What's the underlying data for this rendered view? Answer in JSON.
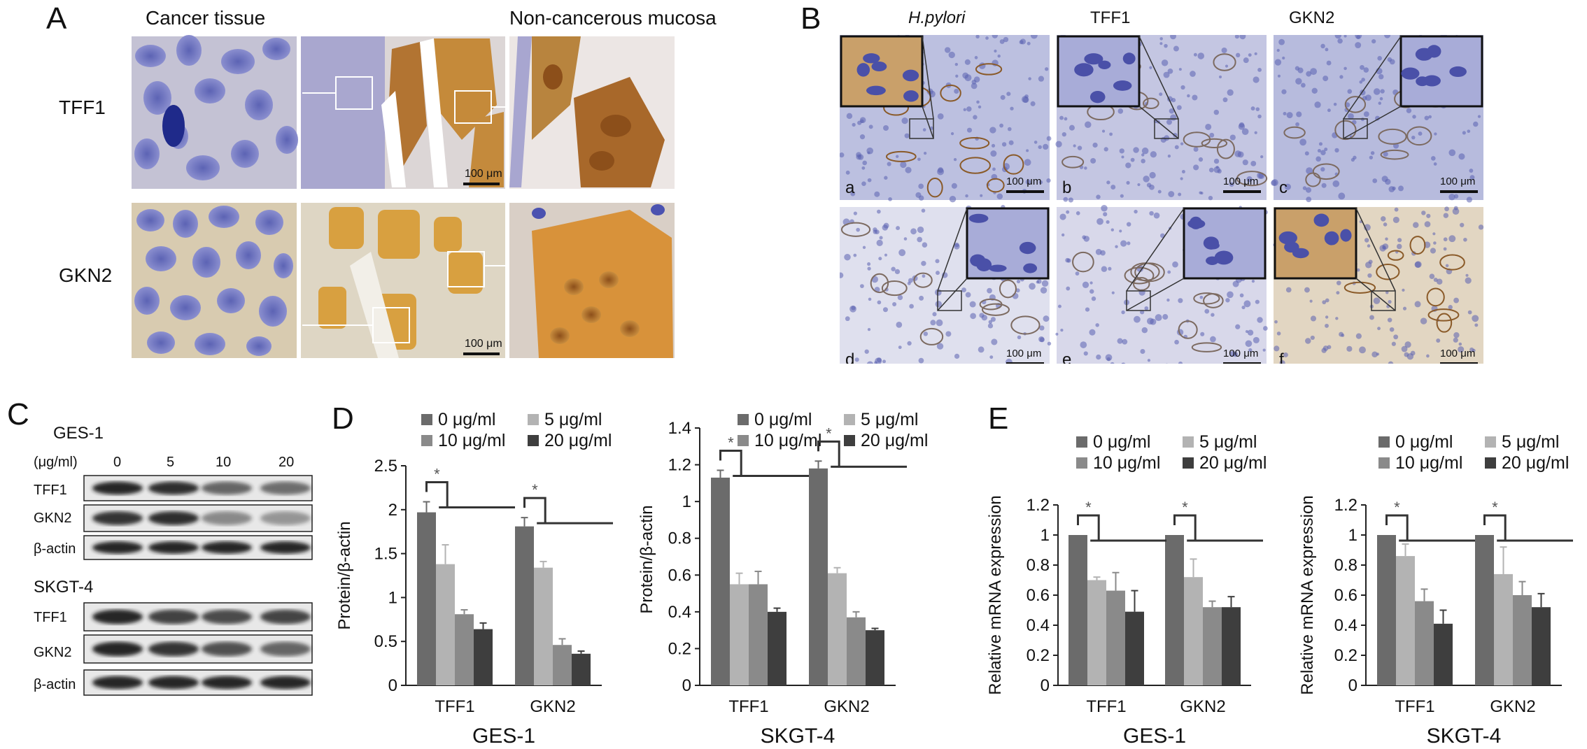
{
  "panelA": {
    "letter": "A",
    "col_cancer": "Cancer tissue",
    "col_noncancer": "Non-cancerous mucosa",
    "rows": [
      "TFF1",
      "GKN2"
    ],
    "scale": "100 μm"
  },
  "panelB": {
    "letter": "B",
    "cols": [
      "H.pylori",
      "TFF1",
      "GKN2"
    ],
    "sub": [
      "a",
      "b",
      "c",
      "d",
      "e",
      "f"
    ],
    "scale": "100 μm"
  },
  "panelC": {
    "letter": "C",
    "cell1": "GES-1",
    "cell2": "SKGT-4",
    "dose_label": "(μg/ml)",
    "doses": [
      "0",
      "5",
      "10",
      "20"
    ],
    "bands": [
      "TFF1",
      "GKN2",
      "β-actin"
    ]
  },
  "panelD": {
    "letter": "D"
  },
  "panelE": {
    "letter": "E"
  },
  "colors": {
    "s0": "#6b6b6b",
    "s5": "#b3b3b3",
    "s10": "#8a8a8a",
    "s20": "#3e3e3e",
    "he_blue": "#8a8fc9",
    "dab_brown": "#b87a2c"
  },
  "chart_data": [
    {
      "id": "D-GES1",
      "type": "bar",
      "categories": [
        "TFF1",
        "GKN2"
      ],
      "series": [
        {
          "name": "0 μg/ml",
          "values": [
            1.97,
            1.81
          ],
          "err": [
            0.12,
            0.1
          ]
        },
        {
          "name": "5 μg/ml",
          "values": [
            1.38,
            1.34
          ],
          "err": [
            0.22,
            0.07
          ]
        },
        {
          "name": "10 μg/ml",
          "values": [
            0.81,
            0.46
          ],
          "err": [
            0.05,
            0.07
          ]
        },
        {
          "name": "20 μg/ml",
          "values": [
            0.64,
            0.36
          ],
          "err": [
            0.07,
            0.03
          ]
        }
      ],
      "xlabel": "GES-1",
      "ylabel": "Protein/β-actin",
      "ylim": [
        0,
        2.5
      ],
      "yticks": [
        "0",
        "0.5",
        "1",
        "1.5",
        "2",
        "2.5"
      ],
      "sig": "*"
    },
    {
      "id": "D-SKGT4",
      "type": "bar",
      "categories": [
        "TFF1",
        "GKN2"
      ],
      "series": [
        {
          "name": "0 μg/ml",
          "values": [
            1.13,
            1.18
          ],
          "err": [
            0.04,
            0.04
          ]
        },
        {
          "name": "5 μg/ml",
          "values": [
            0.55,
            0.61
          ],
          "err": [
            0.06,
            0.03
          ]
        },
        {
          "name": "10 μg/ml",
          "values": [
            0.55,
            0.37
          ],
          "err": [
            0.07,
            0.03
          ]
        },
        {
          "name": "20 μg/ml",
          "values": [
            0.4,
            0.3
          ],
          "err": [
            0.02,
            0.01
          ]
        }
      ],
      "xlabel": "SKGT-4",
      "ylabel": "Protein/β-actin",
      "ylim": [
        0,
        1.4
      ],
      "yticks": [
        "0",
        "0.2",
        "0.4",
        "0.6",
        "0.8",
        "1",
        "1.2",
        "1.4"
      ],
      "sig": "*"
    },
    {
      "id": "E-GES1",
      "type": "bar",
      "categories": [
        "TFF1",
        "GKN2"
      ],
      "series": [
        {
          "name": "0 μg/ml",
          "values": [
            1.0,
            1.0
          ],
          "err": [
            0,
            0
          ]
        },
        {
          "name": "5 μg/ml",
          "values": [
            0.7,
            0.72
          ],
          "err": [
            0.02,
            0.12
          ]
        },
        {
          "name": "10 μg/ml",
          "values": [
            0.63,
            0.52
          ],
          "err": [
            0.12,
            0.04
          ]
        },
        {
          "name": "20 μg/ml",
          "values": [
            0.49,
            0.52
          ],
          "err": [
            0.14,
            0.07
          ]
        }
      ],
      "xlabel": "GES-1",
      "ylabel": "Relative mRNA expression",
      "ylim": [
        0,
        1.2
      ],
      "yticks": [
        "0",
        "0.2",
        "0.4",
        "0.6",
        "0.8",
        "1",
        "1.2"
      ],
      "sig": "*"
    },
    {
      "id": "E-SKGT4",
      "type": "bar",
      "categories": [
        "TFF1",
        "GKN2"
      ],
      "series": [
        {
          "name": "0 μg/ml",
          "values": [
            1.0,
            1.0
          ],
          "err": [
            0,
            0
          ]
        },
        {
          "name": "5 μg/ml",
          "values": [
            0.86,
            0.74
          ],
          "err": [
            0.08,
            0.18
          ]
        },
        {
          "name": "10 μg/ml",
          "values": [
            0.56,
            0.6
          ],
          "err": [
            0.08,
            0.09
          ]
        },
        {
          "name": "20 μg/ml",
          "values": [
            0.41,
            0.52
          ],
          "err": [
            0.09,
            0.09
          ]
        }
      ],
      "xlabel": "SKGT-4",
      "ylabel": "Relative mRNA expression",
      "ylim": [
        0,
        1.2
      ],
      "yticks": [
        "0",
        "0.2",
        "0.4",
        "0.6",
        "0.8",
        "1",
        "1.2"
      ],
      "sig": "*"
    }
  ]
}
